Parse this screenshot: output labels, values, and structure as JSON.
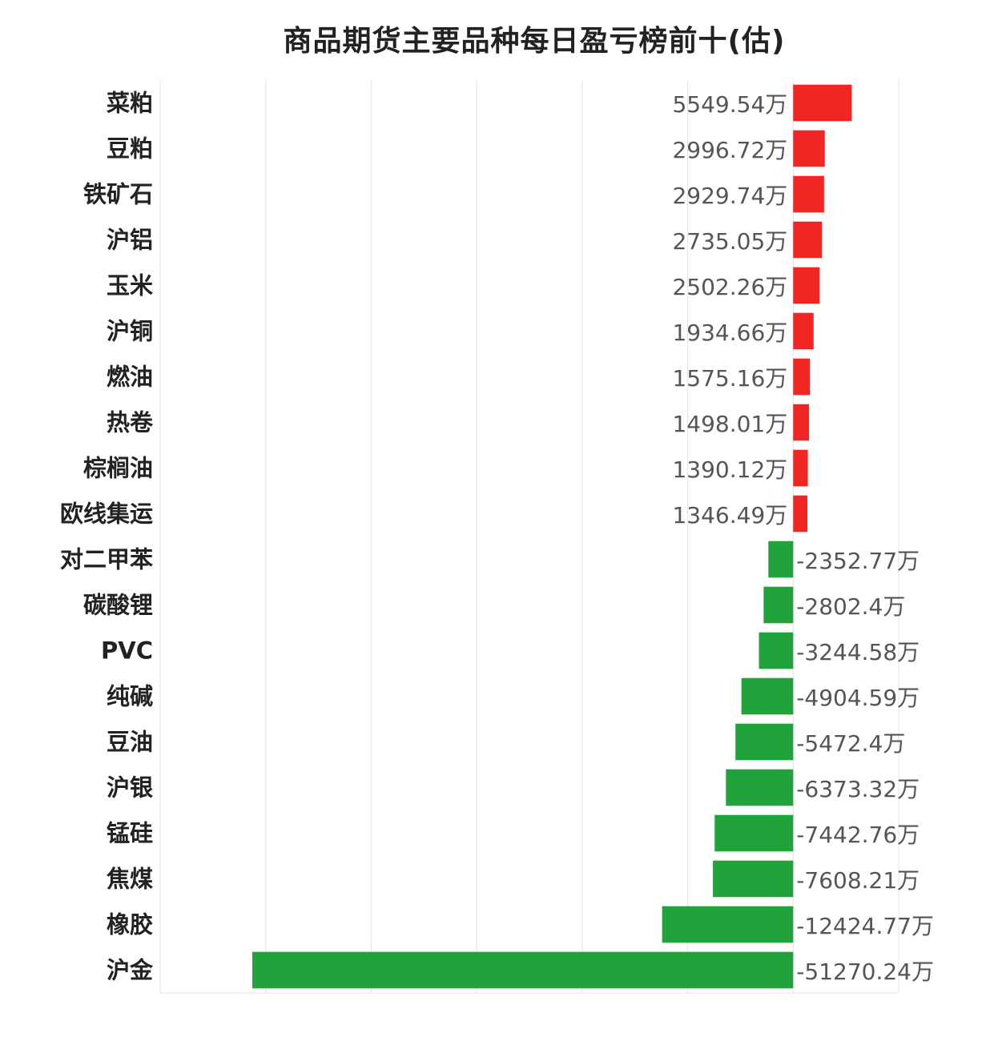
{
  "chart_data": {
    "type": "bar",
    "orientation": "horizontal",
    "title": "商品期货主要品种每日盈亏榜前十(估)",
    "unit_suffix": "万",
    "categories": [
      "菜粕",
      "豆粕",
      "铁矿石",
      "沪铝",
      "玉米",
      "沪铜",
      "燃油",
      "热卷",
      "棕榈油",
      "欧线集运",
      "对二甲苯",
      "碳酸锂",
      "PVC",
      "纯碱",
      "豆油",
      "沪银",
      "锰硅",
      "焦煤",
      "橡胶",
      "沪金"
    ],
    "values": [
      5549.54,
      2996.72,
      2929.74,
      2735.05,
      2502.26,
      1934.66,
      1575.16,
      1498.01,
      1390.12,
      1346.49,
      -2352.77,
      -2802.4,
      -3244.58,
      -4904.59,
      -5472.4,
      -6373.32,
      -7442.76,
      -7608.21,
      -12424.77,
      -51270.24
    ],
    "value_labels": [
      "5549.54万",
      "2996.72万",
      "2929.74万",
      "2735.05万",
      "2502.26万",
      "1934.66万",
      "1575.16万",
      "1498.01万",
      "1390.12万",
      "1346.49万",
      "-2352.77万",
      "-2802.4万",
      "-3244.58万",
      "-4904.59万",
      "-5472.4万",
      "-6373.32万",
      "-7442.76万",
      "-7608.21万",
      "-12424.77万",
      "-51270.24万"
    ],
    "xlim": [
      -60000,
      10000
    ],
    "grid": true,
    "colors": {
      "positive": "#f22525",
      "negative": "#21a33c"
    }
  }
}
